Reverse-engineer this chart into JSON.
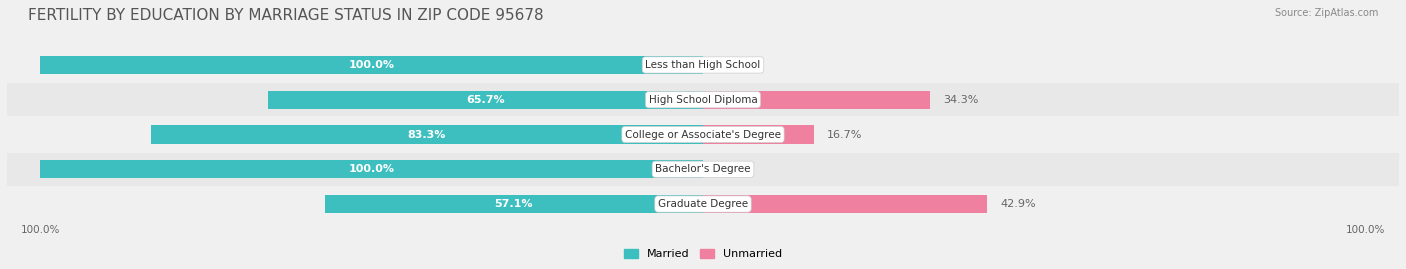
{
  "title": "FERTILITY BY EDUCATION BY MARRIAGE STATUS IN ZIP CODE 95678",
  "source": "Source: ZipAtlas.com",
  "categories": [
    "Less than High School",
    "High School Diploma",
    "College or Associate's Degree",
    "Bachelor's Degree",
    "Graduate Degree"
  ],
  "married": [
    100.0,
    65.7,
    83.3,
    100.0,
    57.1
  ],
  "unmarried": [
    0.0,
    34.3,
    16.7,
    0.0,
    42.9
  ],
  "married_color": "#3dbfbf",
  "unmarried_color": "#f080a0",
  "bg_color": "#f0f0f0",
  "bar_bg_color": "#e8e8e8",
  "row_bg_even": "#f5f5f5",
  "row_bg_odd": "#ebebeb",
  "title_fontsize": 11,
  "label_fontsize": 8,
  "tick_fontsize": 7.5,
  "xlim": [
    -100,
    100
  ],
  "x_ticks": [
    -100,
    100
  ],
  "x_tick_labels": [
    "100.0%",
    "100.0%"
  ]
}
